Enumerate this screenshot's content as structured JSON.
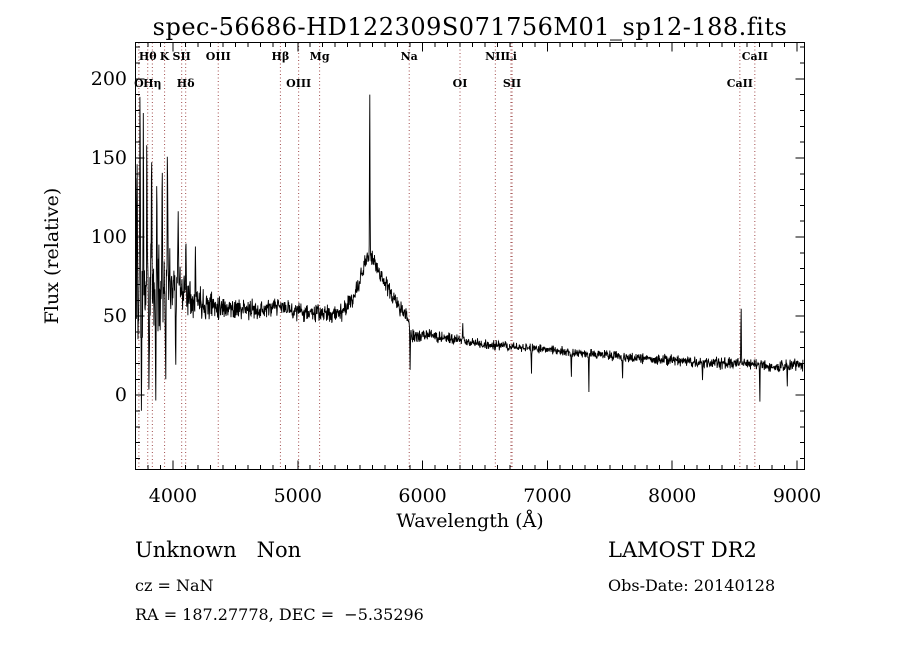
{
  "title": "spec-56686-HD122309S071756M01_sp12-188.fits",
  "footer": {
    "class_label": "Unknown   Non",
    "cz": "cz = NaN",
    "radec": "RA = 187.27778, DEC =  −5.35296",
    "survey": "LAMOST DR2",
    "obs_date": "Obs-Date: 20140128"
  },
  "chart_data": {
    "type": "line",
    "title": "spec-56686-HD122309S071756M01_sp12-188.fits",
    "xlabel": "Wavelength (Å)",
    "ylabel": "Flux (relative)",
    "xlim": [
      3700,
      9060
    ],
    "ylim": [
      -47,
      223
    ],
    "x_ticks": [
      4000,
      5000,
      6000,
      7000,
      8000,
      9000
    ],
    "y_ticks": [
      0,
      50,
      100,
      150,
      200
    ],
    "x_minor_step": 100,
    "y_minor_step": 10,
    "grid": false,
    "legend": "none",
    "line_color": "#000000",
    "marker_line_color": "#a14b4b",
    "series_name": "flux",
    "sample_step": 2.5,
    "noise_seed": 11,
    "continuum": [
      [
        3700,
        58
      ],
      [
        3770,
        62
      ],
      [
        3850,
        66
      ],
      [
        3930,
        69
      ],
      [
        4000,
        72
      ],
      [
        4070,
        67
      ],
      [
        4160,
        62
      ],
      [
        4260,
        58
      ],
      [
        4400,
        56
      ],
      [
        4560,
        54
      ],
      [
        4700,
        54
      ],
      [
        4860,
        56
      ],
      [
        5000,
        53
      ],
      [
        5160,
        52
      ],
      [
        5260,
        51
      ],
      [
        5360,
        53
      ],
      [
        5460,
        63
      ],
      [
        5520,
        78
      ],
      [
        5555,
        87
      ],
      [
        5600,
        86
      ],
      [
        5655,
        78
      ],
      [
        5720,
        68
      ],
      [
        5800,
        57
      ],
      [
        5868,
        50
      ],
      [
        5895,
        46
      ],
      [
        5915,
        37
      ],
      [
        6050,
        38
      ],
      [
        6200,
        36
      ],
      [
        6350,
        34
      ],
      [
        6500,
        32
      ],
      [
        6650,
        31
      ],
      [
        6800,
        30
      ],
      [
        7000,
        29
      ],
      [
        7200,
        27
      ],
      [
        7400,
        26
      ],
      [
        7600,
        24
      ],
      [
        7800,
        23
      ],
      [
        8000,
        22
      ],
      [
        8200,
        21
      ],
      [
        8400,
        20
      ],
      [
        8600,
        20
      ],
      [
        8800,
        18
      ],
      [
        9000,
        19
      ]
    ],
    "noise_sigma": [
      [
        3700,
        46
      ],
      [
        3780,
        40
      ],
      [
        3860,
        33
      ],
      [
        3950,
        26
      ],
      [
        4050,
        18
      ],
      [
        4200,
        13
      ],
      [
        4400,
        9
      ],
      [
        4700,
        7
      ],
      [
        5100,
        6.5
      ],
      [
        5500,
        7
      ],
      [
        5850,
        6
      ],
      [
        5950,
        4.5
      ],
      [
        6300,
        4
      ],
      [
        7000,
        3.6
      ],
      [
        7600,
        3.8
      ],
      [
        8300,
        4.2
      ],
      [
        9000,
        4.6
      ]
    ],
    "emission_spikes": [
      [
        3703,
        140,
        2.5
      ],
      [
        3713,
        148,
        3
      ],
      [
        3736,
        204,
        3
      ],
      [
        3763,
        182,
        3
      ],
      [
        3791,
        168,
        3
      ],
      [
        3829,
        158,
        3
      ],
      [
        3871,
        139,
        3
      ],
      [
        3914,
        149,
        3
      ],
      [
        3956,
        161,
        3
      ],
      [
        4042,
        118,
        3
      ],
      [
        4104,
        100,
        3
      ],
      [
        4180,
        94,
        3
      ],
      [
        5577,
        193,
        3
      ],
      [
        6322,
        46,
        2.5
      ],
      [
        8552,
        56,
        2.5
      ]
    ],
    "absorption_dips": [
      [
        3748,
        -12,
        3
      ],
      [
        3808,
        2,
        3
      ],
      [
        3862,
        -6,
        3
      ],
      [
        3942,
        8,
        3
      ],
      [
        4022,
        18,
        3
      ],
      [
        5900,
        16,
        3
      ],
      [
        6872,
        13,
        2.5
      ],
      [
        7192,
        11,
        2.5
      ],
      [
        7332,
        1,
        2.5
      ],
      [
        7602,
        10,
        2.5
      ],
      [
        8242,
        9,
        2.5
      ],
      [
        8702,
        -5,
        2.5
      ],
      [
        8922,
        5,
        2.5
      ]
    ],
    "spectral_lines": [
      {
        "wl": 3727,
        "label": "O",
        "row": 2
      },
      {
        "wl": 3798,
        "label": "Hθ",
        "row": 1
      },
      {
        "wl": 3835,
        "label": "Hη",
        "row": 2
      },
      {
        "wl": 3933,
        "label": "K",
        "row": 1
      },
      {
        "wl": 4070,
        "label": "SII",
        "row": 1
      },
      {
        "wl": 4102,
        "label": "Hδ",
        "row": 2
      },
      {
        "wl": 4363,
        "label": "OIII",
        "row": 1
      },
      {
        "wl": 4861,
        "label": "Hβ",
        "row": 1
      },
      {
        "wl": 5007,
        "label": "OIII",
        "row": 2
      },
      {
        "wl": 5175,
        "label": "Mg",
        "row": 1
      },
      {
        "wl": 5893,
        "label": "Na",
        "row": 1
      },
      {
        "wl": 6300,
        "label": "OI",
        "row": 2
      },
      {
        "wl": 6583,
        "label": "NII",
        "row": 1
      },
      {
        "wl": 6708,
        "label": "Li",
        "row": 1
      },
      {
        "wl": 6717,
        "label": "SII",
        "row": 2
      },
      {
        "wl": 8542,
        "label": "CaII",
        "row": 2
      },
      {
        "wl": 8662,
        "label": "CaII",
        "row": 1
      }
    ]
  }
}
